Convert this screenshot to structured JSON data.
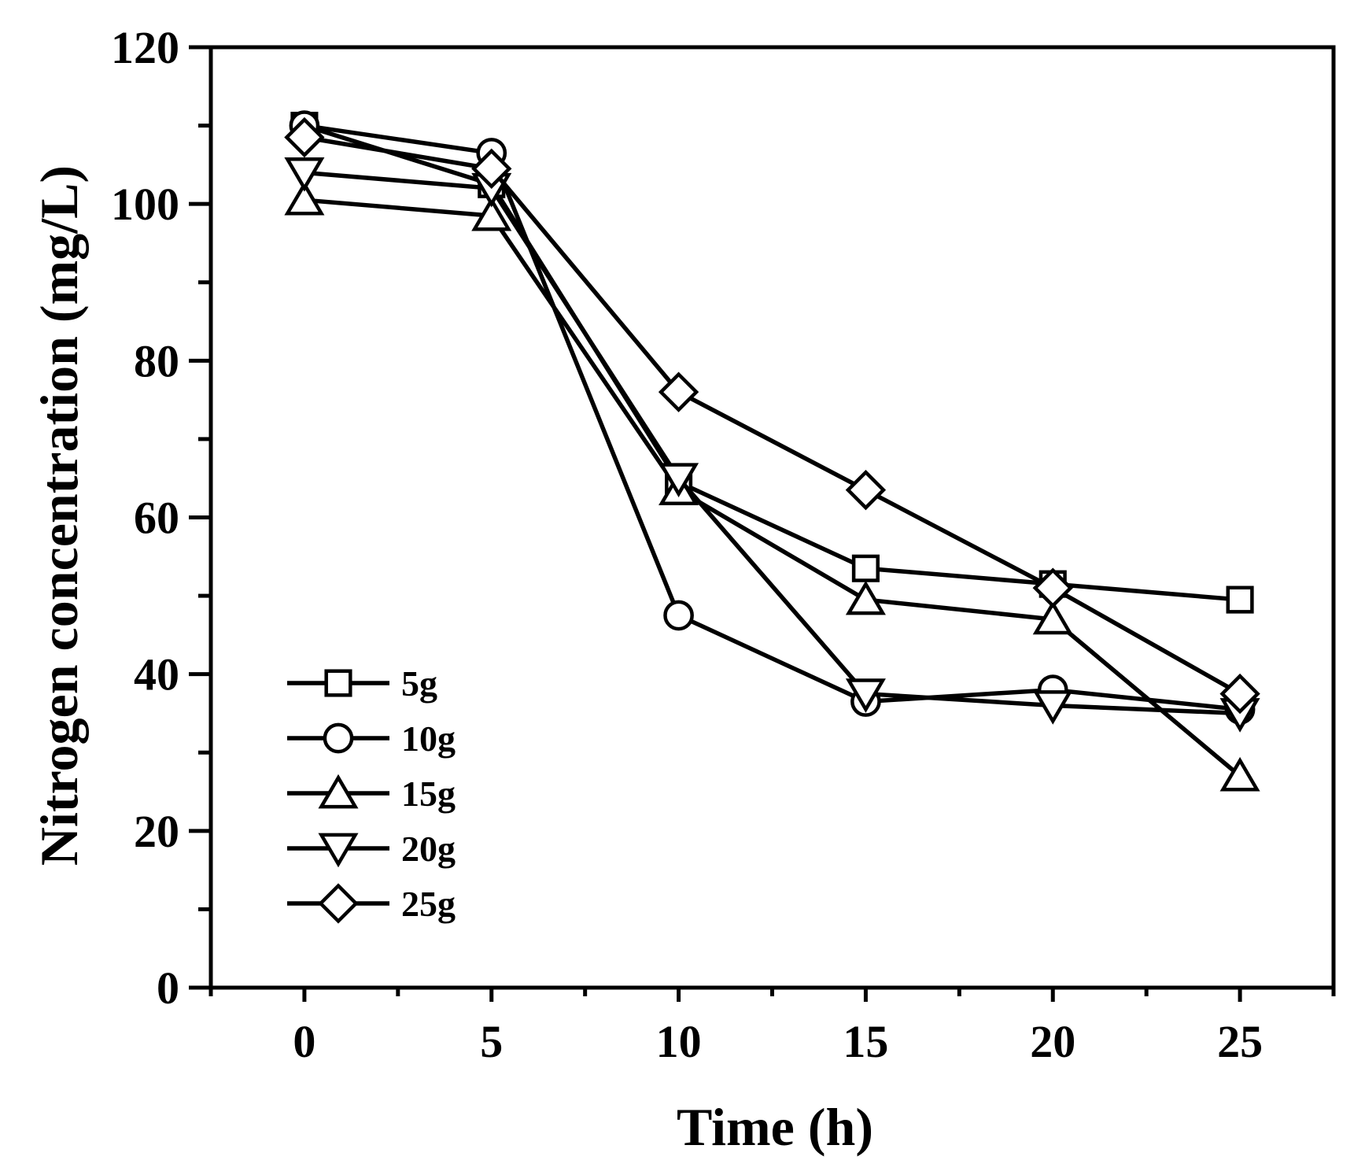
{
  "chart_data": {
    "type": "line",
    "xlabel": "Time (h)",
    "ylabel": "Nitrogen concentration (mg/L)",
    "x": [
      0,
      5,
      10,
      15,
      20,
      25
    ],
    "xlim": [
      -2.5,
      27.5
    ],
    "ylim": [
      0,
      120
    ],
    "xticks": [
      0,
      5,
      10,
      15,
      20,
      25
    ],
    "xminorticks": [
      -2.5,
      2.5,
      7.5,
      12.5,
      17.5,
      22.5,
      27.5
    ],
    "yticks": [
      0,
      20,
      40,
      60,
      80,
      100,
      120
    ],
    "yminorticks": [
      10,
      30,
      50,
      70,
      90,
      110
    ],
    "legend_position": "lower-left",
    "grid": false,
    "series": [
      {
        "name": "5g",
        "marker": "square",
        "values": [
          110.0,
          102.5,
          64.5,
          53.5,
          51.5,
          49.5
        ]
      },
      {
        "name": "10g",
        "marker": "circle",
        "values": [
          110.0,
          106.5,
          47.5,
          36.5,
          38.0,
          35.5
        ]
      },
      {
        "name": "15g",
        "marker": "triangle-up",
        "values": [
          100.5,
          98.5,
          63.5,
          49.5,
          47.0,
          27.0
        ]
      },
      {
        "name": "20g",
        "marker": "triangle-down",
        "values": [
          104.0,
          102.0,
          65.0,
          37.5,
          36.0,
          35.0
        ]
      },
      {
        "name": "25g",
        "marker": "diamond",
        "values": [
          108.5,
          104.5,
          76.0,
          63.5,
          51.0,
          37.5
        ]
      }
    ]
  }
}
